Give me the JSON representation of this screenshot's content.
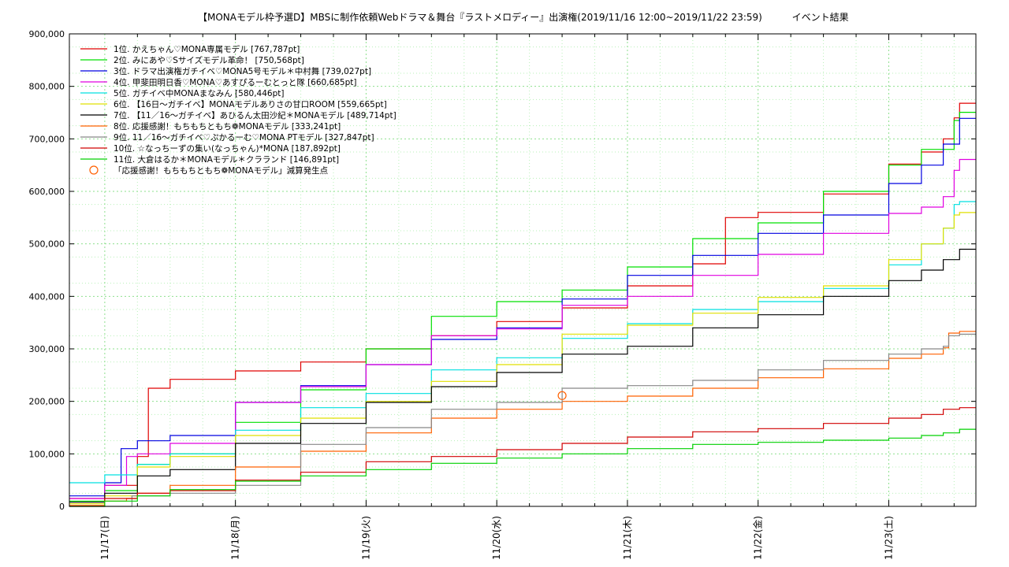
{
  "chart_data": {
    "type": "line",
    "title": "【MONAモデル枠予選D】MBSに制作依頼Webドラマ＆舞台『ラストメロディー』出演権(2019/11/16 12:00~2019/11/22 23:59)",
    "subtitle": "イベント結果",
    "xlabel": "",
    "ylabel": "",
    "x_range_hours": [
      -6.5,
      160
    ],
    "xlim": [
      "2019-11-16 17:30",
      "2019-11-23 09:00"
    ],
    "ylim": [
      0,
      900000
    ],
    "x_ticks": [
      "11/17(日)",
      "11/18(月)",
      "11/19(火)",
      "11/20(水)",
      "11/21(木)",
      "11/22(金)",
      "11/23(土)"
    ],
    "y_ticks": [
      "0",
      "100,000",
      "200,000",
      "300,000",
      "400,000",
      "500,000",
      "600,000",
      "700,000",
      "800,000",
      "900,000"
    ],
    "y_tick_values": [
      0,
      100000,
      200000,
      300000,
      400000,
      500000,
      600000,
      700000,
      800000,
      900000
    ],
    "grid": true,
    "legend_position": "top-left",
    "series": [
      {
        "name": "1位. かえちゃん♡MONA専属モデル [767,787pt]",
        "color": "#e00000",
        "points": [
          [
            -6.5,
            15000
          ],
          [
            0,
            40000
          ],
          [
            6,
            95000
          ],
          [
            8,
            225000
          ],
          [
            12,
            242000
          ],
          [
            24,
            258000
          ],
          [
            36,
            275000
          ],
          [
            48,
            300000
          ],
          [
            60,
            325000
          ],
          [
            72,
            352000
          ],
          [
            84,
            378000
          ],
          [
            96,
            420000
          ],
          [
            108,
            462000
          ],
          [
            114,
            550000
          ],
          [
            120,
            560000
          ],
          [
            132,
            595000
          ],
          [
            144,
            652000
          ],
          [
            150,
            675000
          ],
          [
            154,
            700000
          ],
          [
            156,
            740000
          ],
          [
            157,
            767787
          ],
          [
            160,
            767787
          ]
        ]
      },
      {
        "name": "2位. みにあや♡Sサイズモデル革命！ [750,568pt]",
        "color": "#00e000",
        "points": [
          [
            -6.5,
            10000
          ],
          [
            0,
            30000
          ],
          [
            6,
            80000
          ],
          [
            12,
            100000
          ],
          [
            24,
            160000
          ],
          [
            36,
            222000
          ],
          [
            48,
            300000
          ],
          [
            60,
            362000
          ],
          [
            72,
            390000
          ],
          [
            84,
            412000
          ],
          [
            96,
            456000
          ],
          [
            108,
            510000
          ],
          [
            120,
            540000
          ],
          [
            132,
            600000
          ],
          [
            144,
            650000
          ],
          [
            150,
            680000
          ],
          [
            156,
            735000
          ],
          [
            157,
            750568
          ],
          [
            160,
            750568
          ]
        ]
      },
      {
        "name": "3位. ドラマ出演権ガチイベ♡MONA5号モデル＊中村舞 [739,027pt]",
        "color": "#0000e0",
        "points": [
          [
            -6.5,
            20000
          ],
          [
            0,
            45000
          ],
          [
            3,
            110000
          ],
          [
            6,
            125000
          ],
          [
            12,
            135000
          ],
          [
            24,
            198000
          ],
          [
            36,
            230000
          ],
          [
            48,
            270000
          ],
          [
            60,
            318000
          ],
          [
            72,
            340000
          ],
          [
            84,
            395000
          ],
          [
            96,
            440000
          ],
          [
            108,
            478000
          ],
          [
            120,
            520000
          ],
          [
            132,
            555000
          ],
          [
            144,
            615000
          ],
          [
            150,
            650000
          ],
          [
            154,
            690000
          ],
          [
            157,
            739027
          ],
          [
            160,
            739027
          ]
        ]
      },
      {
        "name": "4位. 甲斐田明日香♡MONA♡あすぴるーむとっと隊 [660,685pt]",
        "color": "#e000e0",
        "points": [
          [
            -6.5,
            15000
          ],
          [
            0,
            40000
          ],
          [
            4,
            95000
          ],
          [
            6,
            100000
          ],
          [
            12,
            120000
          ],
          [
            24,
            198000
          ],
          [
            36,
            228000
          ],
          [
            48,
            270000
          ],
          [
            60,
            325000
          ],
          [
            72,
            338000
          ],
          [
            84,
            383000
          ],
          [
            96,
            400000
          ],
          [
            108,
            440000
          ],
          [
            120,
            480000
          ],
          [
            132,
            520000
          ],
          [
            144,
            558000
          ],
          [
            150,
            570000
          ],
          [
            154,
            590000
          ],
          [
            156,
            640000
          ],
          [
            157,
            660685
          ],
          [
            160,
            660685
          ]
        ]
      },
      {
        "name": "5位. ガチイベ中MONAまなみん [580,446pt]",
        "color": "#00e0e0",
        "points": [
          [
            -6.5,
            45000
          ],
          [
            0,
            60000
          ],
          [
            6,
            80000
          ],
          [
            12,
            100000
          ],
          [
            24,
            145000
          ],
          [
            36,
            188000
          ],
          [
            48,
            215000
          ],
          [
            60,
            260000
          ],
          [
            72,
            283000
          ],
          [
            84,
            320000
          ],
          [
            96,
            348000
          ],
          [
            108,
            375000
          ],
          [
            120,
            390000
          ],
          [
            132,
            415000
          ],
          [
            144,
            460000
          ],
          [
            150,
            500000
          ],
          [
            154,
            530000
          ],
          [
            156,
            575000
          ],
          [
            157,
            580446
          ],
          [
            160,
            580446
          ]
        ]
      },
      {
        "name": "6位. 【16日～ガチイベ】MONAモデルありさの甘口ROOM [559,665pt]",
        "color": "#e0e000",
        "points": [
          [
            -6.5,
            5000
          ],
          [
            0,
            20000
          ],
          [
            6,
            75000
          ],
          [
            12,
            95000
          ],
          [
            24,
            135000
          ],
          [
            36,
            168000
          ],
          [
            48,
            200000
          ],
          [
            60,
            238000
          ],
          [
            72,
            270000
          ],
          [
            84,
            328000
          ],
          [
            96,
            345000
          ],
          [
            108,
            368000
          ],
          [
            120,
            398000
          ],
          [
            132,
            420000
          ],
          [
            144,
            470000
          ],
          [
            150,
            500000
          ],
          [
            154,
            530000
          ],
          [
            156,
            555000
          ],
          [
            157,
            559665
          ],
          [
            160,
            559665
          ]
        ]
      },
      {
        "name": "7位. 【11／16～ガチイベ】あひるん太田沙紀＊MONAモデル [489,714pt]",
        "color": "#000000",
        "points": [
          [
            -6.5,
            8000
          ],
          [
            0,
            25000
          ],
          [
            6,
            58000
          ],
          [
            12,
            70000
          ],
          [
            24,
            120000
          ],
          [
            36,
            158000
          ],
          [
            48,
            198000
          ],
          [
            60,
            228000
          ],
          [
            72,
            255000
          ],
          [
            84,
            290000
          ],
          [
            96,
            305000
          ],
          [
            108,
            340000
          ],
          [
            120,
            365000
          ],
          [
            132,
            400000
          ],
          [
            144,
            430000
          ],
          [
            150,
            450000
          ],
          [
            154,
            470000
          ],
          [
            157,
            489714
          ],
          [
            160,
            489714
          ]
        ]
      },
      {
        "name": "8位. 応援感謝！もちもちともち❁MONAモデル [333,241pt]",
        "color": "#ff6000",
        "points": [
          [
            -6.5,
            2000
          ],
          [
            0,
            10000
          ],
          [
            4,
            15000
          ],
          [
            6,
            25000
          ],
          [
            12,
            40000
          ],
          [
            24,
            75000
          ],
          [
            36,
            105000
          ],
          [
            48,
            140000
          ],
          [
            60,
            168000
          ],
          [
            72,
            185000
          ],
          [
            84,
            200000
          ],
          [
            96,
            210000
          ],
          [
            108,
            225000
          ],
          [
            120,
            245000
          ],
          [
            132,
            262000
          ],
          [
            144,
            282000
          ],
          [
            150,
            290000
          ],
          [
            154,
            302000
          ],
          [
            155,
            330000
          ],
          [
            157,
            333241
          ],
          [
            160,
            333241
          ]
        ]
      },
      {
        "name": "9位. 11／16～ガチイベ♡ぷかるーむ♡MONA PTモデル [327,847pt]",
        "color": "#888888",
        "points": [
          [
            -6.5,
            0
          ],
          [
            4,
            0
          ],
          [
            5,
            20000
          ],
          [
            12,
            25000
          ],
          [
            24,
            40000
          ],
          [
            36,
            118000
          ],
          [
            48,
            150000
          ],
          [
            60,
            185000
          ],
          [
            72,
            198000
          ],
          [
            84,
            225000
          ],
          [
            96,
            230000
          ],
          [
            108,
            240000
          ],
          [
            120,
            260000
          ],
          [
            132,
            278000
          ],
          [
            144,
            290000
          ],
          [
            150,
            300000
          ],
          [
            154,
            305000
          ],
          [
            155,
            325000
          ],
          [
            157,
            327847
          ],
          [
            160,
            327847
          ]
        ]
      },
      {
        "name": "10位. ☆なっちーずの集い(なっちゃん)*MONA [187,892pt]",
        "color": "#d00000",
        "points": [
          [
            -6.5,
            0
          ],
          [
            0,
            15000
          ],
          [
            6,
            25000
          ],
          [
            12,
            30000
          ],
          [
            24,
            50000
          ],
          [
            36,
            65000
          ],
          [
            48,
            85000
          ],
          [
            60,
            95000
          ],
          [
            72,
            108000
          ],
          [
            84,
            120000
          ],
          [
            96,
            132000
          ],
          [
            108,
            142000
          ],
          [
            120,
            148000
          ],
          [
            132,
            158000
          ],
          [
            144,
            168000
          ],
          [
            150,
            175000
          ],
          [
            154,
            185000
          ],
          [
            157,
            187892
          ],
          [
            160,
            187892
          ]
        ]
      },
      {
        "name": "11位. 大倉はるか＊MONAモデル＊クラランド [146,891pt]",
        "color": "#00d000",
        "points": [
          [
            -6.5,
            0
          ],
          [
            0,
            10000
          ],
          [
            6,
            20000
          ],
          [
            12,
            32000
          ],
          [
            24,
            48000
          ],
          [
            36,
            58000
          ],
          [
            48,
            70000
          ],
          [
            60,
            82000
          ],
          [
            72,
            92000
          ],
          [
            84,
            100000
          ],
          [
            96,
            110000
          ],
          [
            108,
            118000
          ],
          [
            120,
            122000
          ],
          [
            132,
            126000
          ],
          [
            144,
            130000
          ],
          [
            150,
            135000
          ],
          [
            154,
            140000
          ],
          [
            157,
            146891
          ],
          [
            160,
            146891
          ]
        ]
      }
    ],
    "annotations": [
      {
        "label": "「応援感謝！もちもちともち❁MONAモデル」減算発生点",
        "color": "#ff6000",
        "marker": "circle",
        "x": 84,
        "y": 211000
      }
    ]
  }
}
